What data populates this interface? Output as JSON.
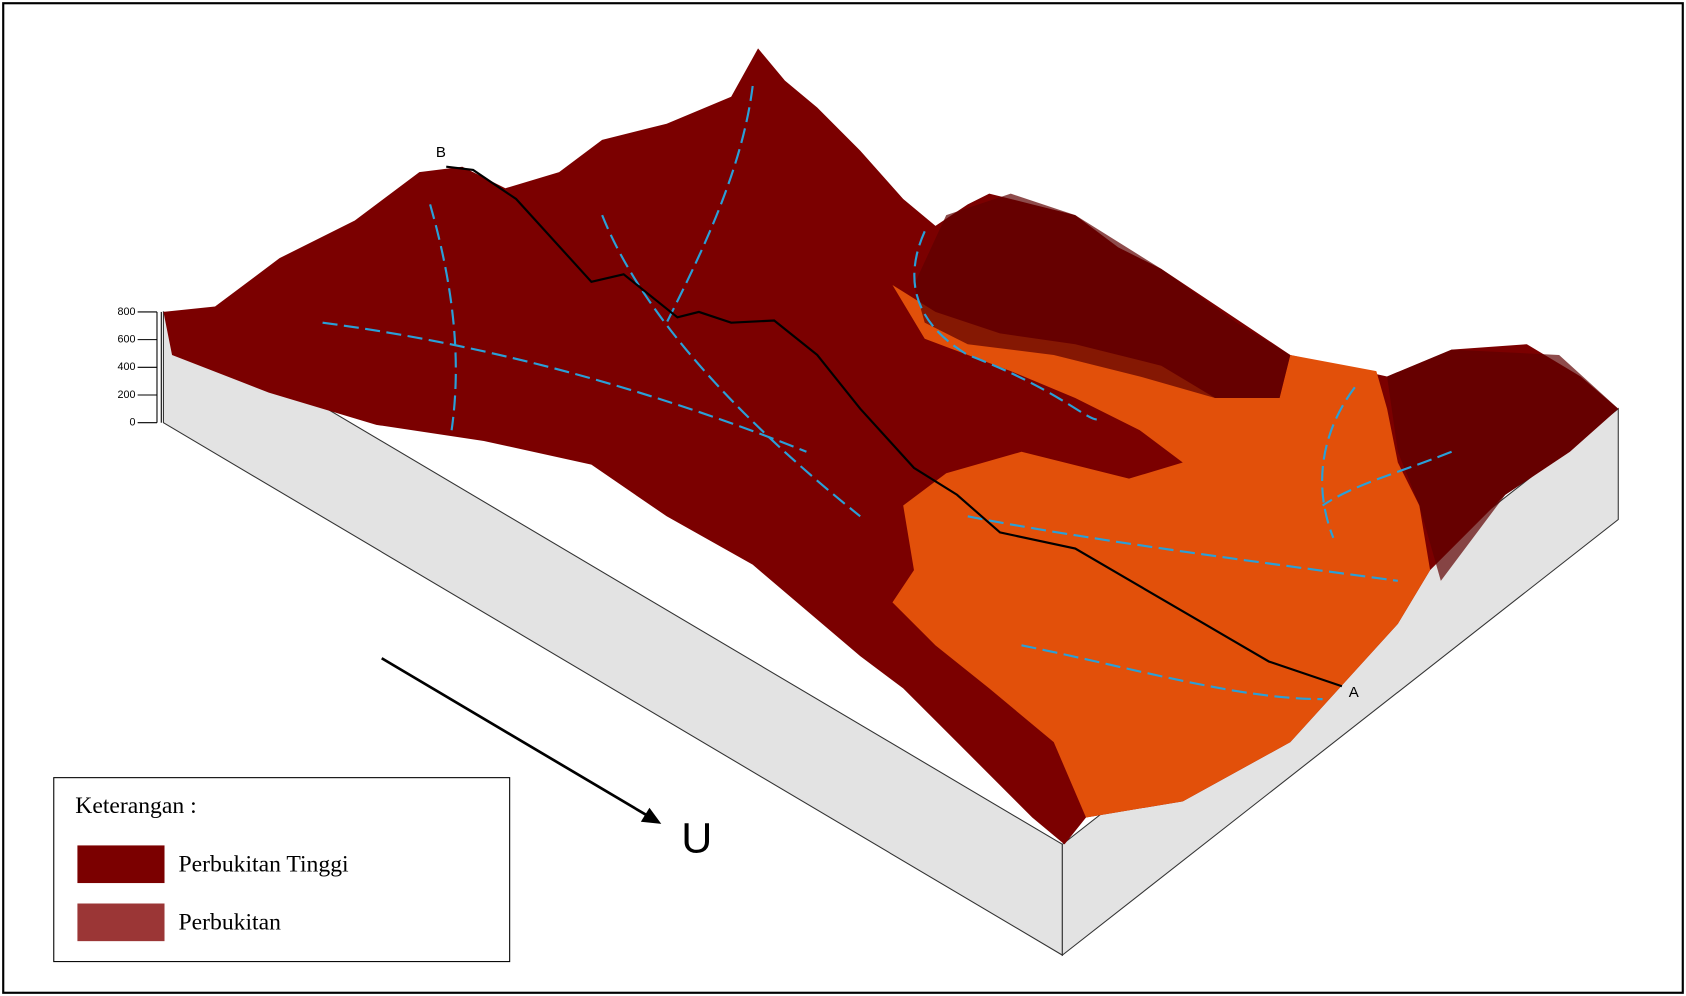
{
  "profile_labels": {
    "start": "B",
    "end": "A"
  },
  "north_label": "U",
  "elevation_scale": [
    800,
    600,
    400,
    200,
    0
  ],
  "elevation_max": 800,
  "legend": {
    "title": "Keterangan :",
    "items": [
      {
        "label": "Perbukitan Tinggi",
        "color": "#7b0000"
      },
      {
        "label": "Perbukitan",
        "color": "#9b3636"
      }
    ]
  }
}
